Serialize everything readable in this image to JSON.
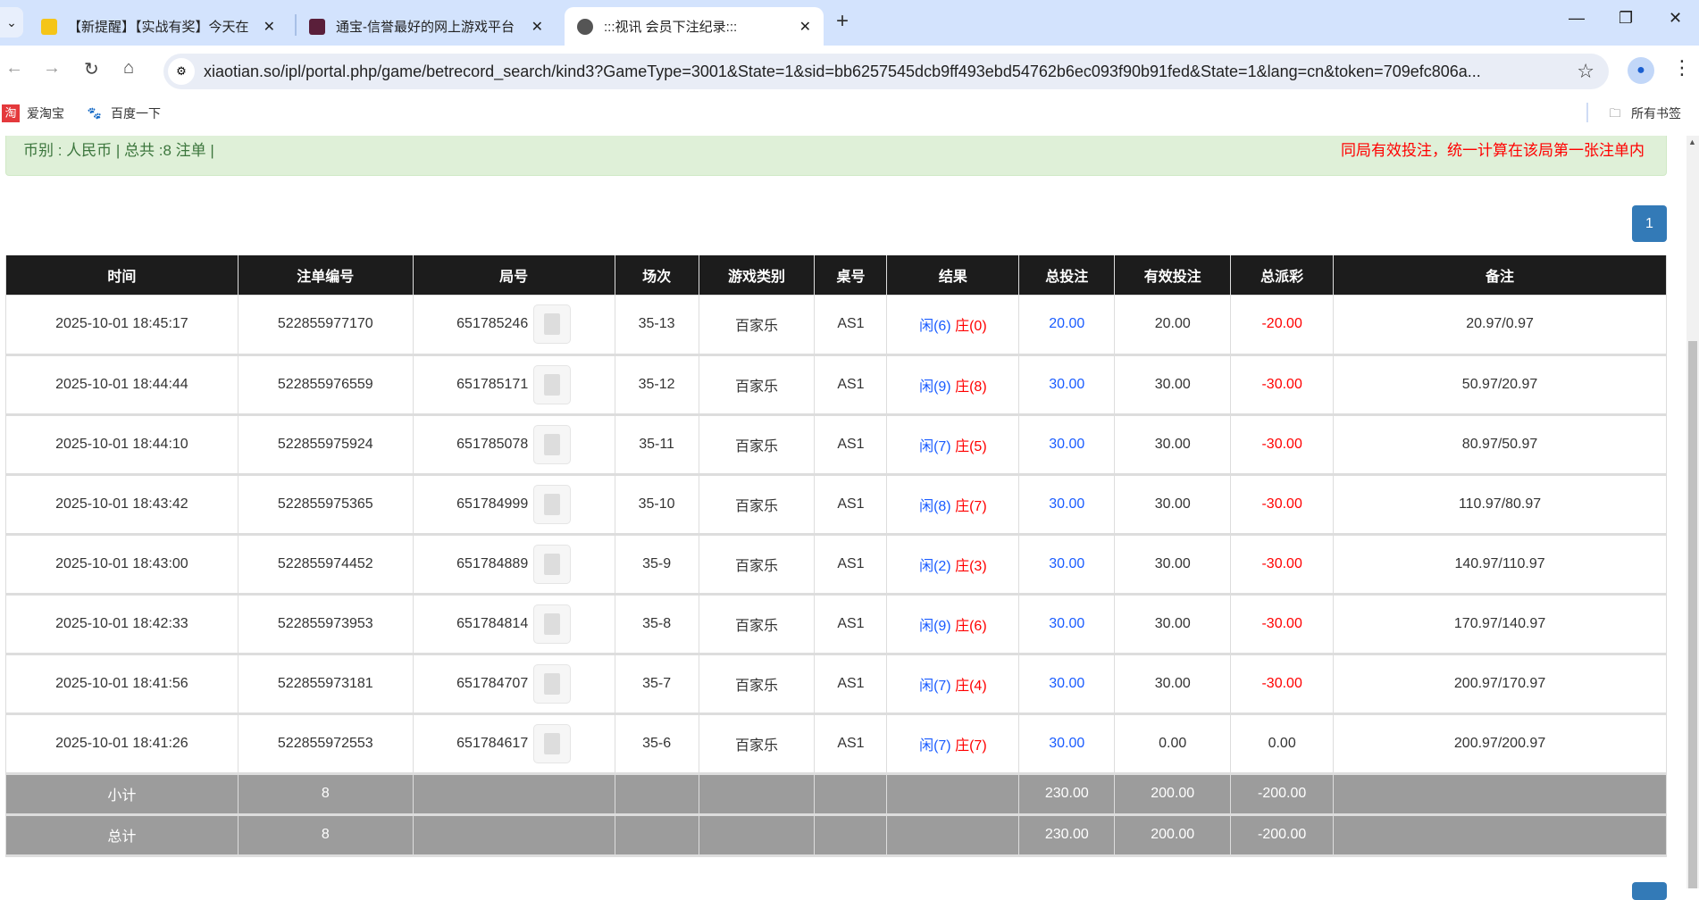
{
  "browser": {
    "tabs": [
      {
        "title": "【新提醒】【实战有奖】今天在",
        "active": false,
        "icon_color": "#f5c518"
      },
      {
        "title": "通宝-信誉最好的网上游戏平台",
        "active": false,
        "icon_color": "#5a1f3a"
      },
      {
        "title": ":::视讯 会员下注纪录:::",
        "active": true,
        "icon_color": "#555"
      }
    ],
    "url": "xiaotian.so/ipl/portal.php/game/betrecord_search/kind3?GameType=3001&State=1&sid=bb6257545dcb9ff493ebd54762b6ec093f90b91fed&State=1&lang=cn&token=709efc806a...",
    "bookmarks": [
      {
        "label": "爱淘宝",
        "icon_color": "#e4393c"
      },
      {
        "label": "百度一下",
        "icon_color": "#2932e1"
      }
    ],
    "all_bookmarks": "所有书签"
  },
  "summary": {
    "left": "币别 : 人民币 | 总共 :8 注单 |",
    "right": "同局有效投注，统一计算在该局第一张注单内"
  },
  "pagination": {
    "current": "1"
  },
  "table": {
    "headers": [
      "时间",
      "注单编号",
      "局号",
      "场次",
      "游戏类别",
      "桌号",
      "结果",
      "总投注",
      "有效投注",
      "总派彩",
      "备注"
    ],
    "rows": [
      {
        "time": "2025-10-01 18:45:17",
        "bet_id": "522855977170",
        "round": "651785246",
        "shoe": "35-13",
        "game": "百家乐",
        "table": "AS1",
        "player": "闲(6)",
        "banker": "庄(0)",
        "total": "20.00",
        "valid": "20.00",
        "payout": "-20.00",
        "note": "20.97/0.97"
      },
      {
        "time": "2025-10-01 18:44:44",
        "bet_id": "522855976559",
        "round": "651785171",
        "shoe": "35-12",
        "game": "百家乐",
        "table": "AS1",
        "player": "闲(9)",
        "banker": "庄(8)",
        "total": "30.00",
        "valid": "30.00",
        "payout": "-30.00",
        "note": "50.97/20.97"
      },
      {
        "time": "2025-10-01 18:44:10",
        "bet_id": "522855975924",
        "round": "651785078",
        "shoe": "35-11",
        "game": "百家乐",
        "table": "AS1",
        "player": "闲(7)",
        "banker": "庄(5)",
        "total": "30.00",
        "valid": "30.00",
        "payout": "-30.00",
        "note": "80.97/50.97"
      },
      {
        "time": "2025-10-01 18:43:42",
        "bet_id": "522855975365",
        "round": "651784999",
        "shoe": "35-10",
        "game": "百家乐",
        "table": "AS1",
        "player": "闲(8)",
        "banker": "庄(7)",
        "total": "30.00",
        "valid": "30.00",
        "payout": "-30.00",
        "note": "110.97/80.97"
      },
      {
        "time": "2025-10-01 18:43:00",
        "bet_id": "522855974452",
        "round": "651784889",
        "shoe": "35-9",
        "game": "百家乐",
        "table": "AS1",
        "player": "闲(2)",
        "banker": "庄(3)",
        "total": "30.00",
        "valid": "30.00",
        "payout": "-30.00",
        "note": "140.97/110.97"
      },
      {
        "time": "2025-10-01 18:42:33",
        "bet_id": "522855973953",
        "round": "651784814",
        "shoe": "35-8",
        "game": "百家乐",
        "table": "AS1",
        "player": "闲(9)",
        "banker": "庄(6)",
        "total": "30.00",
        "valid": "30.00",
        "payout": "-30.00",
        "note": "170.97/140.97"
      },
      {
        "time": "2025-10-01 18:41:56",
        "bet_id": "522855973181",
        "round": "651784707",
        "shoe": "35-7",
        "game": "百家乐",
        "table": "AS1",
        "player": "闲(7)",
        "banker": "庄(4)",
        "total": "30.00",
        "valid": "30.00",
        "payout": "-30.00",
        "note": "200.97/170.97"
      },
      {
        "time": "2025-10-01 18:41:26",
        "bet_id": "522855972553",
        "round": "651784617",
        "shoe": "35-6",
        "game": "百家乐",
        "table": "AS1",
        "player": "闲(7)",
        "banker": "庄(7)",
        "total": "30.00",
        "valid": "0.00",
        "payout": "0.00",
        "note": "200.97/200.97"
      }
    ],
    "subtotal": {
      "label": "小计",
      "count": "8",
      "total": "230.00",
      "valid": "200.00",
      "payout": "-200.00"
    },
    "grand_total": {
      "label": "总计",
      "count": "8",
      "total": "230.00",
      "valid": "200.00",
      "payout": "-200.00"
    }
  }
}
